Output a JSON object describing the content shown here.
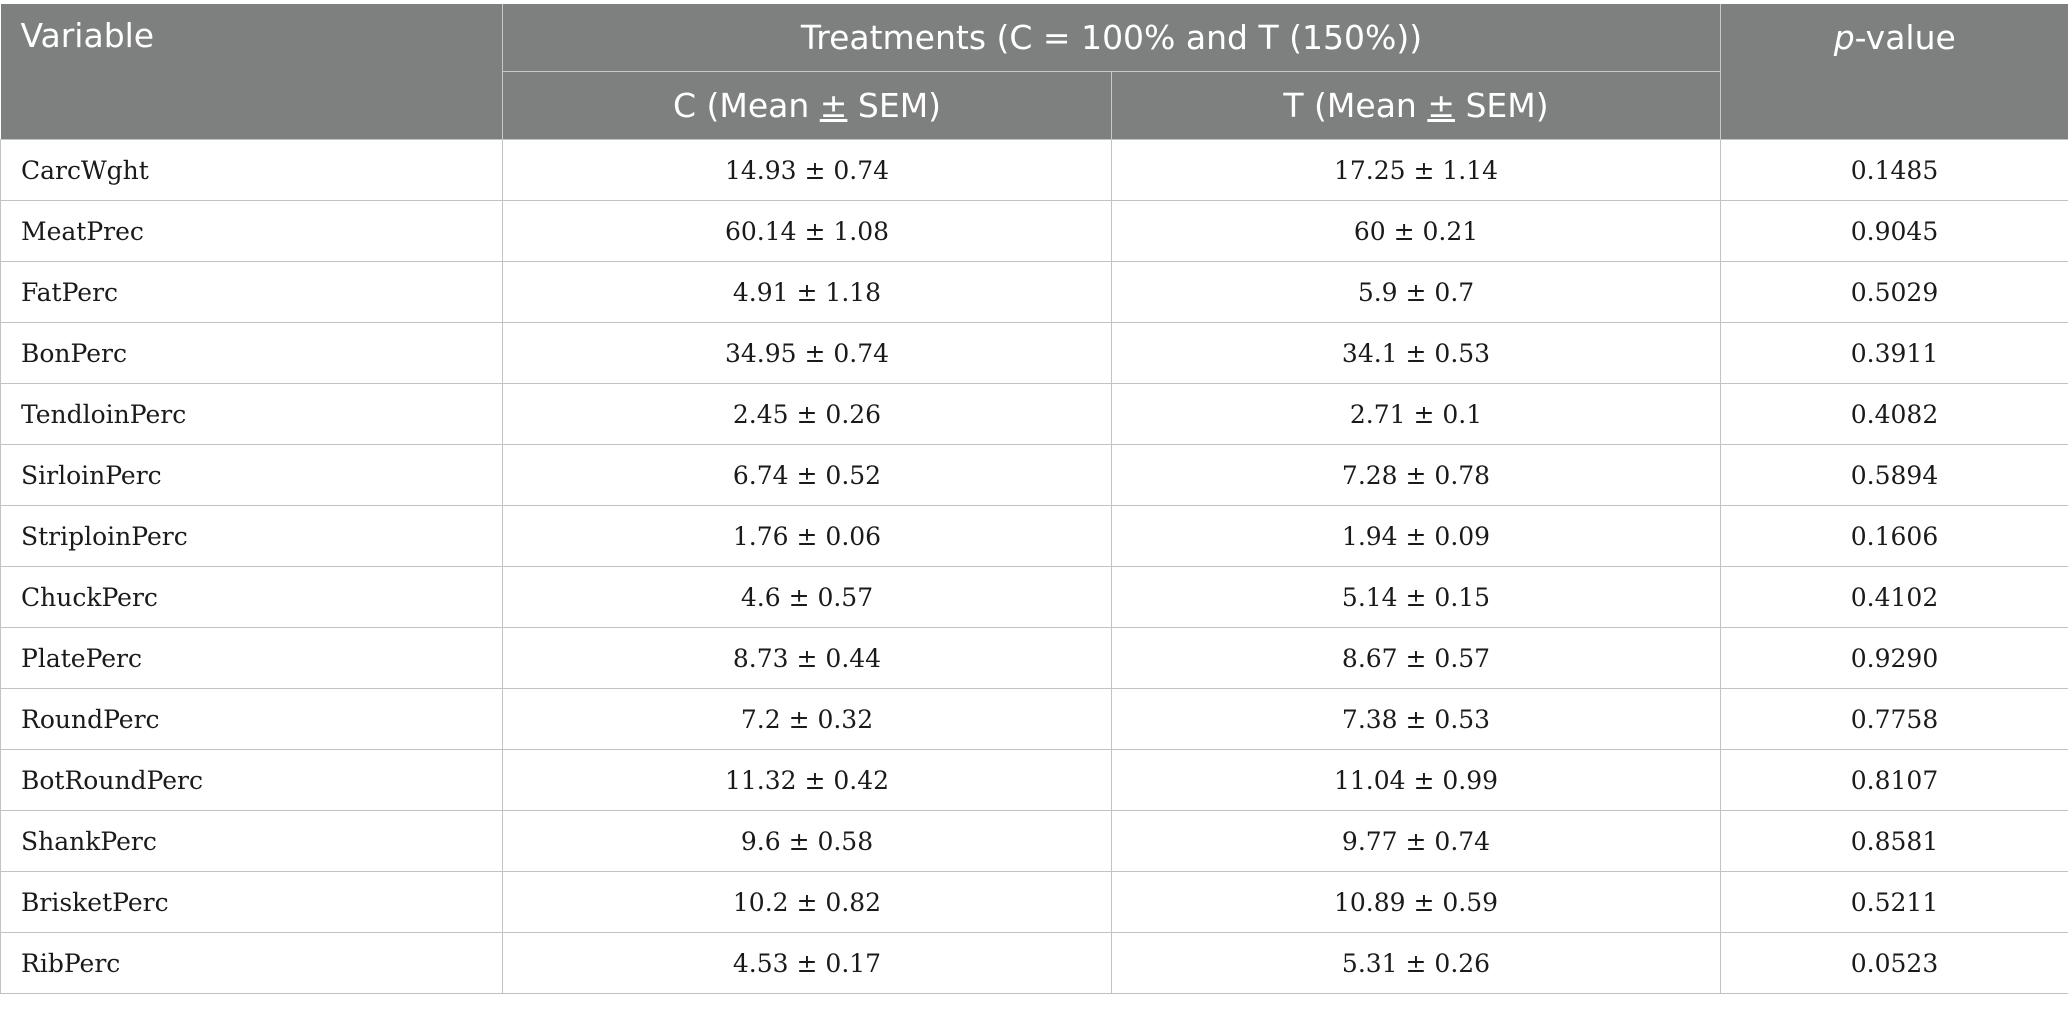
{
  "table": {
    "header": {
      "variable": "Variable",
      "treatments": "Treatments (C = 100% and T (150%))",
      "p_italic": "p",
      "p_rest": "-value",
      "sub_c_pre": "C (Mean ",
      "sub_t_pre": "T (Mean ",
      "pm": "±",
      "sub_post": " SEM)"
    },
    "rows": [
      {
        "variable": "CarcWght",
        "c": "14.93 ± 0.74",
        "t": "17.25 ± 1.14",
        "p": "0.1485"
      },
      {
        "variable": "MeatPrec",
        "c": "60.14 ± 1.08",
        "t": "60 ± 0.21",
        "p": "0.9045"
      },
      {
        "variable": "FatPerc",
        "c": "4.91 ± 1.18",
        "t": "5.9 ± 0.7",
        "p": "0.5029"
      },
      {
        "variable": "BonPerc",
        "c": "34.95 ± 0.74",
        "t": "34.1 ± 0.53",
        "p": "0.3911"
      },
      {
        "variable": "TendloinPerc",
        "c": "2.45 ± 0.26",
        "t": "2.71 ± 0.1",
        "p": "0.4082"
      },
      {
        "variable": "SirloinPerc",
        "c": "6.74 ± 0.52",
        "t": "7.28 ± 0.78",
        "p": "0.5894"
      },
      {
        "variable": "StriploinPerc",
        "c": "1.76 ± 0.06",
        "t": "1.94 ± 0.09",
        "p": "0.1606"
      },
      {
        "variable": "ChuckPerc",
        "c": "4.6 ± 0.57",
        "t": "5.14 ± 0.15",
        "p": "0.4102"
      },
      {
        "variable": "PlatePerc",
        "c": "8.73 ± 0.44",
        "t": "8.67 ± 0.57",
        "p": "0.9290"
      },
      {
        "variable": "RoundPerc",
        "c": "7.2 ± 0.32",
        "t": "7.38 ± 0.53",
        "p": "0.7758"
      },
      {
        "variable": "BotRoundPerc",
        "c": "11.32 ± 0.42",
        "t": "11.04 ± 0.99",
        "p": "0.8107"
      },
      {
        "variable": "ShankPerc",
        "c": "9.6 ± 0.58",
        "t": "9.77 ± 0.74",
        "p": "0.8581"
      },
      {
        "variable": "BrisketPerc",
        "c": "10.2 ± 0.82",
        "t": "10.89 ± 0.59",
        "p": "0.5211"
      },
      {
        "variable": "RibPerc",
        "c": "4.53 ± 0.17",
        "t": "5.31 ± 0.26",
        "p": "0.0523"
      }
    ]
  }
}
